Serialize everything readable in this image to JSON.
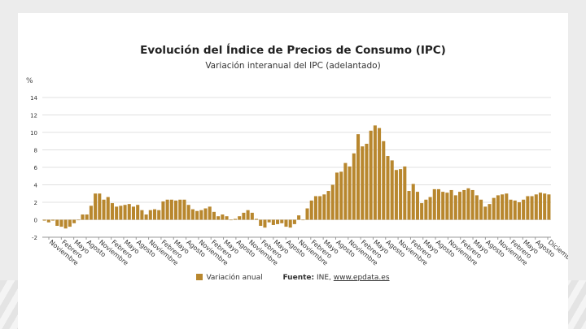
{
  "title": "Evolución del Índice de Precios de Consumo (IPC)",
  "subtitle": "Variación interanual del IPC (adelantado)",
  "y_unit": "%",
  "legend": {
    "series_label": "Variación anual",
    "source_label": "Fuente:",
    "source_text": "INE,",
    "source_link": "www.epdata.es"
  },
  "colors": {
    "bar": "#b8872e",
    "grid": "#e0e0e0",
    "axis": "#999999",
    "text": "#333333"
  },
  "chart_data": {
    "type": "bar",
    "title": "Evolución del Índice de Precios de Consumo (IPC)",
    "subtitle": "Variación interanual del IPC (adelantado)",
    "ylabel": "%",
    "ylim": [
      -2,
      14
    ],
    "yticks": [
      -2,
      0,
      2,
      4,
      6,
      8,
      10,
      12,
      14
    ],
    "grid": true,
    "legend_position": "bottom",
    "xtick_labels": [
      "Noviembre",
      "Febrero",
      "Mayo",
      "Agosto",
      "Noviembre",
      "Febrero",
      "Mayo",
      "Agosto",
      "Noviembre",
      "Febrero",
      "Mayo",
      "Agosto",
      "Noviembre",
      "Febrero",
      "Mayo",
      "Agosto",
      "Noviembre",
      "Febrero",
      "Mayo",
      "Agosto",
      "Noviembre",
      "Febrero",
      "Mayo",
      "Agosto",
      "Noviembre",
      "Febrero",
      "Mayo",
      "Agosto",
      "Noviembre",
      "Febrero",
      "Mayo",
      "Agosto",
      "Noviembre",
      "Febrero",
      "Mayo",
      "Agosto",
      "Noviembre",
      "Febrero",
      "Mayo",
      "Agosto",
      "Diciembre"
    ],
    "series": [
      {
        "name": "Variación anual",
        "values": [
          -0.1,
          -0.3,
          -0.1,
          -0.7,
          -0.8,
          -1.0,
          -0.8,
          -0.4,
          0.0,
          0.6,
          0.6,
          1.6,
          3.0,
          3.0,
          2.3,
          2.6,
          1.9,
          1.5,
          1.6,
          1.7,
          1.8,
          1.5,
          1.7,
          1.1,
          0.6,
          1.1,
          1.2,
          1.1,
          2.1,
          2.3,
          2.3,
          2.2,
          2.3,
          2.3,
          1.7,
          1.2,
          1.0,
          1.1,
          1.3,
          1.5,
          0.9,
          0.4,
          0.6,
          0.4,
          0.0,
          0.1,
          0.4,
          0.8,
          1.1,
          0.8,
          0.1,
          -0.7,
          -0.9,
          -0.3,
          -0.6,
          -0.5,
          -0.4,
          -0.8,
          -0.9,
          -0.5,
          0.5,
          0.0,
          1.3,
          2.2,
          2.7,
          2.7,
          2.9,
          3.3,
          4.0,
          5.4,
          5.5,
          6.5,
          6.1,
          7.6,
          9.8,
          8.4,
          8.7,
          10.2,
          10.8,
          10.5,
          9.0,
          7.3,
          6.8,
          5.7,
          5.8,
          6.1,
          3.3,
          4.1,
          3.2,
          1.9,
          2.3,
          2.6,
          3.5,
          3.5,
          3.2,
          3.1,
          3.4,
          2.8,
          3.2,
          3.4,
          3.6,
          3.4,
          2.8,
          2.3,
          1.5,
          1.8,
          2.5,
          2.8,
          2.9,
          3.0,
          2.3,
          2.2,
          2.0,
          2.3,
          2.7,
          2.7,
          2.9,
          3.1,
          3.0,
          2.9
        ]
      }
    ]
  }
}
